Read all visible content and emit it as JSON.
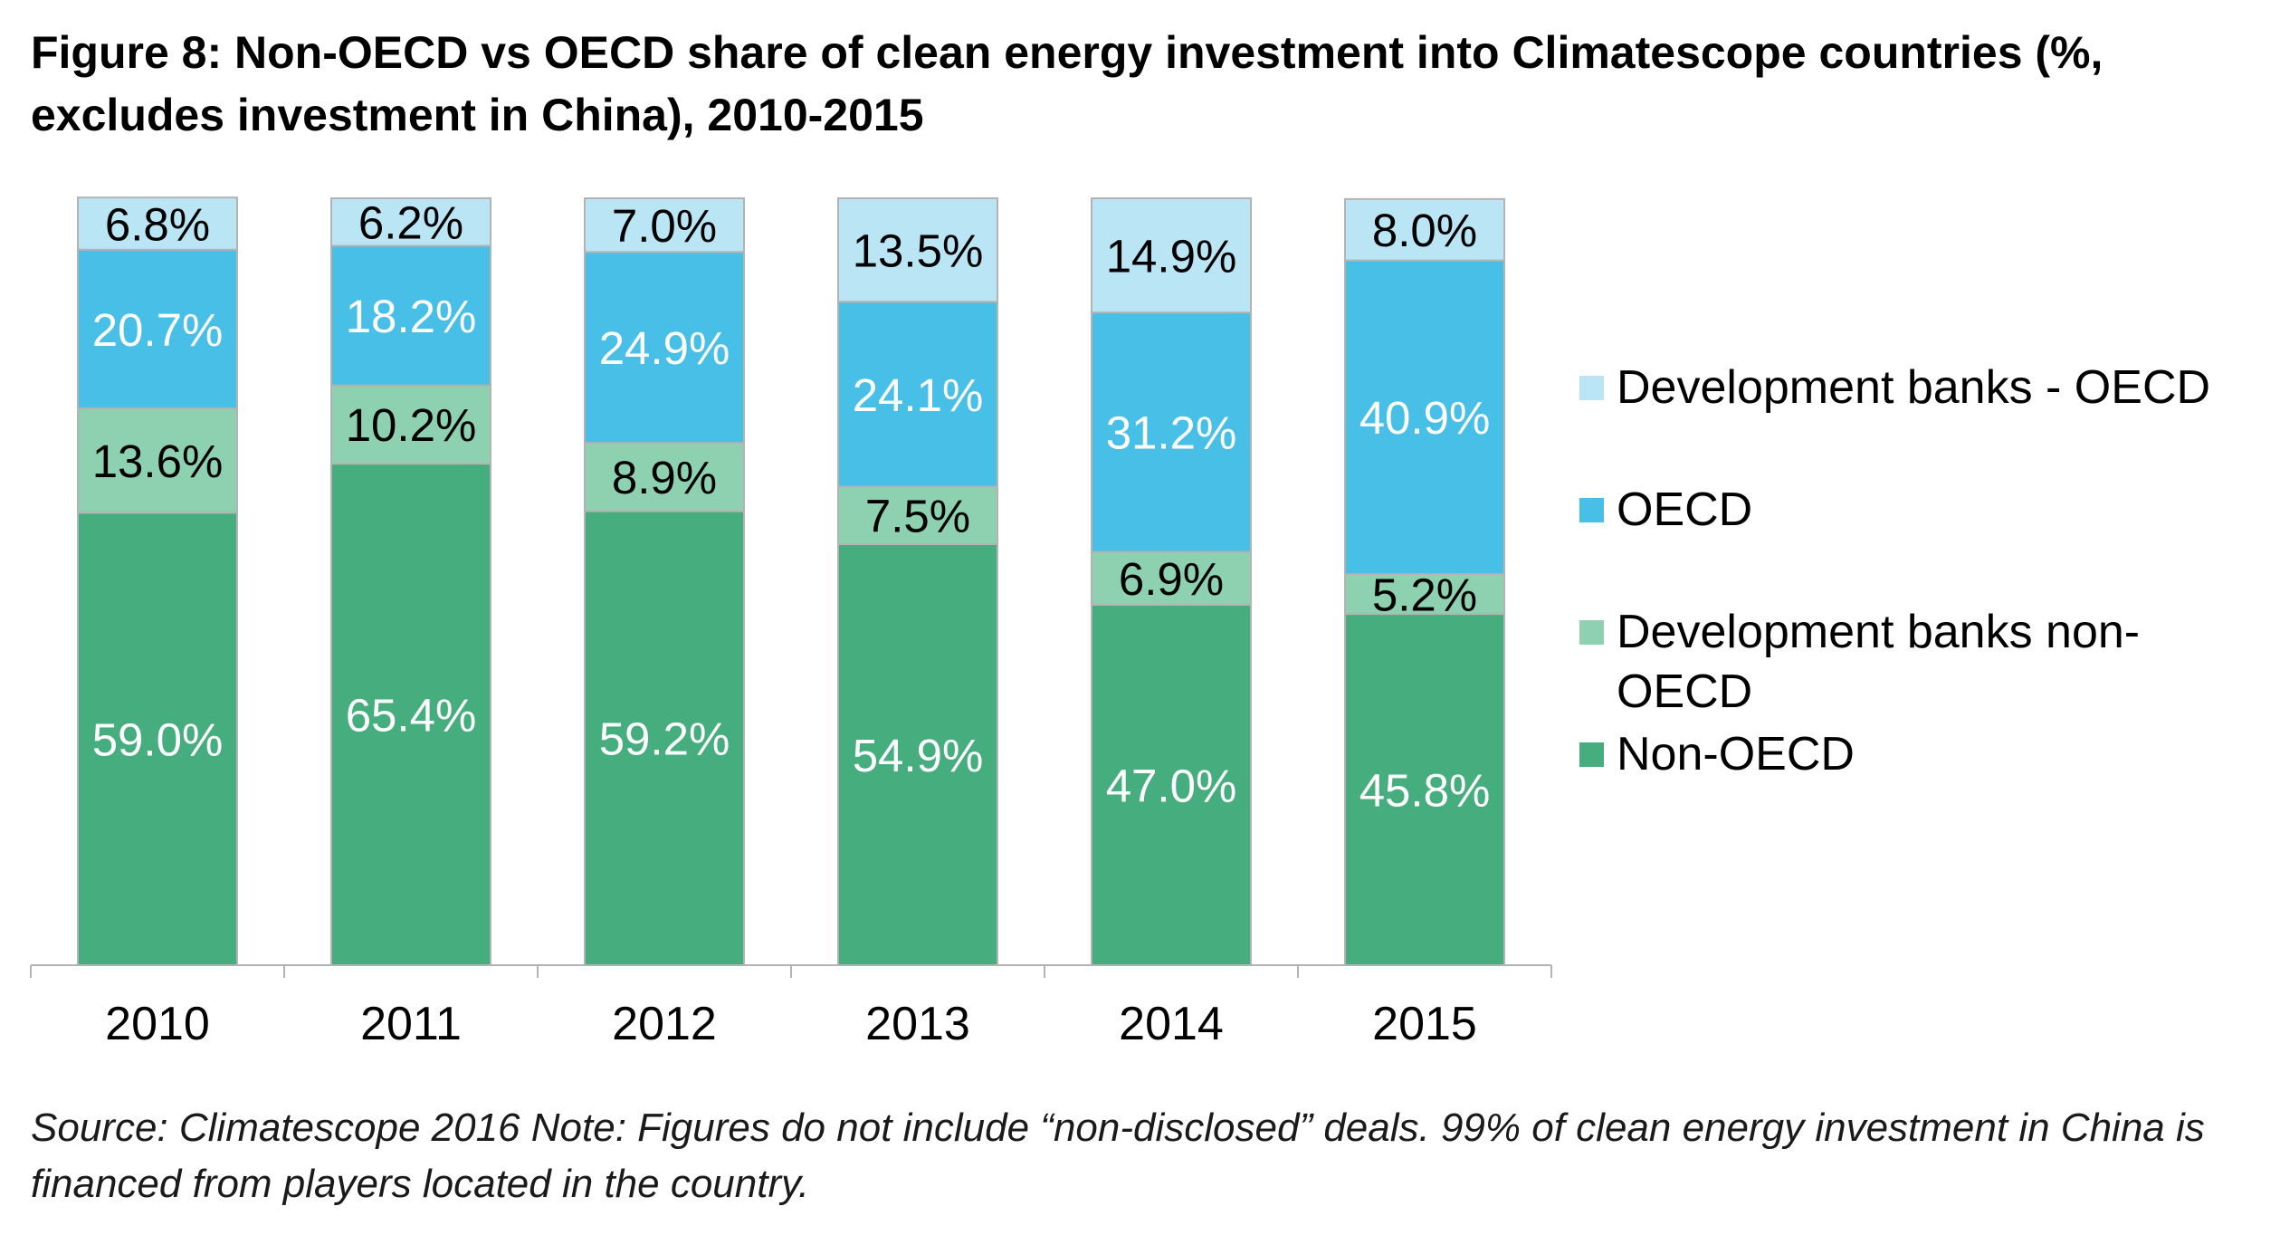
{
  "title": "Figure 8: Non-OECD vs OECD share of clean energy investment into Climatescope countries (%, excludes investment in China), 2010-2015",
  "source": "Source: Climatescope 2016 Note: Figures do not include “non-disclosed” deals. 99% of clean energy investment in China is financed from players located in the country.",
  "chart_data": {
    "type": "bar",
    "stacked": true,
    "categories": [
      "2010",
      "2011",
      "2012",
      "2013",
      "2014",
      "2015"
    ],
    "series": [
      {
        "name": "Non-OECD",
        "color": "#46AE7E",
        "label_color": "#ffffff",
        "values": [
          59.0,
          65.4,
          59.2,
          54.9,
          47.0,
          45.8
        ],
        "labels": [
          "59.0%",
          "65.4%",
          "59.2%",
          "54.9%",
          "47.0%",
          "45.8%"
        ]
      },
      {
        "name": "Development banks non-OECD",
        "color": "#8ED1B0",
        "label_color": "#000000",
        "values": [
          13.6,
          10.2,
          8.9,
          7.5,
          6.9,
          5.2
        ],
        "labels": [
          "13.6%",
          "10.2%",
          "8.9%",
          "7.5%",
          "6.9%",
          "5.2%"
        ]
      },
      {
        "name": "OECD",
        "color": "#48BFE6",
        "label_color": "#ffffff",
        "values": [
          20.7,
          18.2,
          24.9,
          24.1,
          31.2,
          40.9
        ],
        "labels": [
          "20.7%",
          "18.2%",
          "24.9%",
          "24.1%",
          "31.2%",
          "40.9%"
        ]
      },
      {
        "name": "Development banks - OECD",
        "color": "#B9E5F5",
        "label_color": "#000000",
        "values": [
          6.8,
          6.2,
          7.0,
          13.5,
          14.9,
          8.0
        ],
        "labels": [
          "6.8%",
          "6.2%",
          "7.0%",
          "13.5%",
          "14.9%",
          "8.0%"
        ]
      }
    ],
    "legend_order": [
      "Development banks - OECD",
      "OECD",
      "Development banks non-\nOECD",
      "Non-OECD"
    ],
    "legend_position": "right",
    "ylim": [
      0,
      100
    ],
    "grid": false,
    "xlabel": "",
    "ylabel": ""
  }
}
